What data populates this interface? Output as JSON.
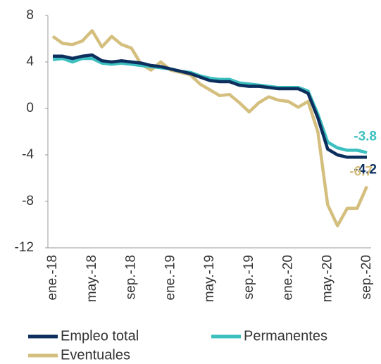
{
  "chart_data": {
    "type": "line",
    "categories": [
      "ene.-18",
      null,
      null,
      null,
      "may.-18",
      null,
      null,
      null,
      "sep.-18",
      null,
      null,
      null,
      "ene.-19",
      null,
      null,
      null,
      "may.-19",
      null,
      null,
      null,
      "sep.-19",
      null,
      null,
      null,
      "ene.-20",
      null,
      null,
      null,
      "may.-20",
      null,
      null,
      null,
      "sep.-20"
    ],
    "series": [
      {
        "name": "Empleo total",
        "color": "#0d2f5e",
        "values": [
          4.5,
          4.5,
          4.3,
          4.5,
          4.6,
          4.1,
          4.0,
          4.1,
          4.0,
          3.9,
          3.7,
          3.6,
          3.4,
          3.2,
          3.0,
          2.7,
          2.4,
          2.3,
          2.3,
          2.0,
          1.9,
          1.9,
          1.8,
          1.7,
          1.7,
          1.7,
          1.3,
          -0.8,
          -3.5,
          -4.0,
          -4.2,
          -4.2,
          -4.2
        ]
      },
      {
        "name": "Permanentes",
        "color": "#3cbfbf",
        "values": [
          4.2,
          4.3,
          4.0,
          4.3,
          4.3,
          3.9,
          3.8,
          3.9,
          3.8,
          3.7,
          3.6,
          3.5,
          3.4,
          3.2,
          3.1,
          2.8,
          2.6,
          2.5,
          2.5,
          2.2,
          2.1,
          2.0,
          1.9,
          1.8,
          1.8,
          1.8,
          1.5,
          -0.5,
          -2.9,
          -3.4,
          -3.6,
          -3.6,
          -3.8
        ]
      },
      {
        "name": "Eventuales",
        "color": "#d4bf7f",
        "values": [
          6.2,
          5.6,
          5.5,
          5.8,
          6.7,
          5.3,
          6.2,
          5.5,
          5.2,
          3.8,
          3.3,
          4.0,
          3.3,
          3.1,
          2.9,
          2.1,
          1.6,
          1.1,
          1.2,
          0.5,
          -0.3,
          0.5,
          1.0,
          0.7,
          0.6,
          0.1,
          0.6,
          -2.0,
          -8.3,
          -10.1,
          -8.6,
          -8.6,
          -6.7
        ]
      }
    ],
    "ylim": [
      -12,
      8
    ],
    "yticks": [
      8,
      4,
      0,
      -4,
      -8,
      -12
    ],
    "grid": false
  }
}
